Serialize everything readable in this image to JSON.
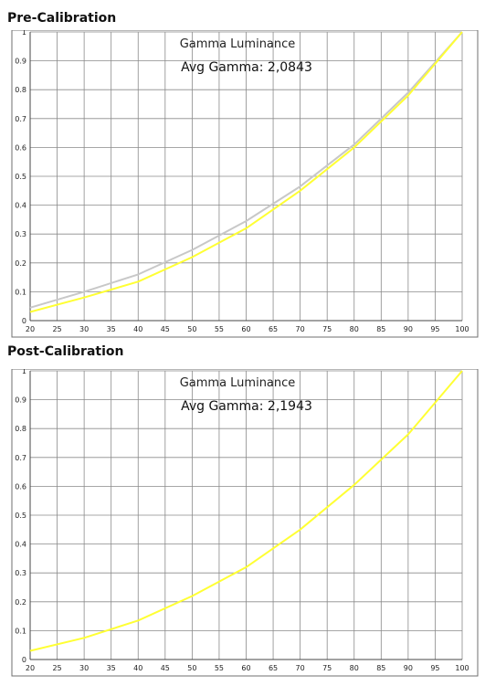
{
  "sections": {
    "pre": {
      "title": "Pre-Calibration"
    },
    "post": {
      "title": "Post-Calibration"
    }
  },
  "chart_data": [
    {
      "type": "line",
      "title": "Gamma Luminance",
      "subtitle": "Avg Gamma: 2,0843",
      "xlim": [
        20,
        100
      ],
      "ylim": [
        0,
        1
      ],
      "x_ticks": [
        "20",
        "25",
        "30",
        "35",
        "40",
        "45",
        "50",
        "55",
        "60",
        "65",
        "70",
        "75",
        "80",
        "85",
        "90",
        "95",
        "100"
      ],
      "y_ticks": [
        "0",
        "0.1",
        "0.2",
        "0.3",
        "0.4",
        "0.5",
        "0.6",
        "0.7",
        "0.8",
        "0.9",
        "1"
      ],
      "grid": true,
      "x": [
        20,
        30,
        40,
        50,
        60,
        70,
        80,
        90,
        100
      ],
      "series": [
        {
          "color": "#c8c8c8",
          "values": [
            0.045,
            0.1,
            0.16,
            0.245,
            0.345,
            0.465,
            0.61,
            0.79,
            1.0
          ]
        },
        {
          "color": "#ffff33",
          "values": [
            0.03,
            0.08,
            0.135,
            0.22,
            0.32,
            0.45,
            0.6,
            0.78,
            1.0
          ]
        }
      ]
    },
    {
      "type": "line",
      "title": "Gamma Luminance",
      "subtitle": "Avg Gamma: 2,1943",
      "xlim": [
        20,
        100
      ],
      "ylim": [
        0,
        1
      ],
      "x_ticks": [
        "20",
        "25",
        "30",
        "35",
        "40",
        "45",
        "50",
        "55",
        "60",
        "65",
        "70",
        "75",
        "80",
        "85",
        "90",
        "95",
        "100"
      ],
      "y_ticks": [
        "0",
        "0.1",
        "0.2",
        "0.3",
        "0.4",
        "0.5",
        "0.6",
        "0.7",
        "0.8",
        "0.9",
        "1"
      ],
      "grid": true,
      "x": [
        20,
        30,
        40,
        50,
        60,
        70,
        80,
        90,
        100
      ],
      "series": [
        {
          "color": "#ffff33",
          "values": [
            0.03,
            0.075,
            0.135,
            0.22,
            0.32,
            0.45,
            0.605,
            0.78,
            1.0
          ]
        }
      ]
    }
  ]
}
